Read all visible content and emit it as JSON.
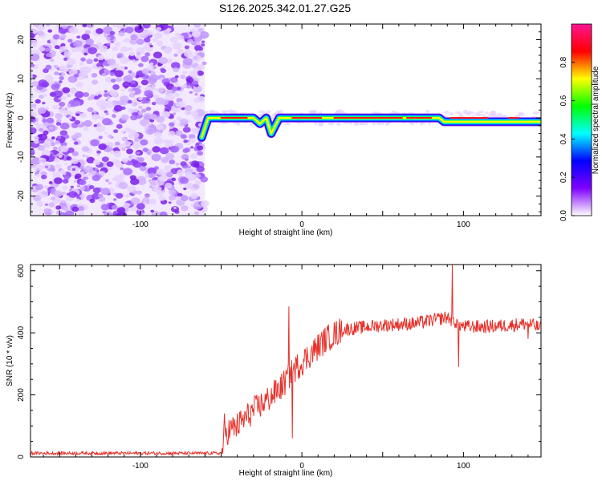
{
  "chart_data": [
    {
      "type": "heatmap",
      "title": "S126.2025.342.01.27.G25",
      "xlabel": "Height of straight line (km)",
      "ylabel": "Frequency (Hz)",
      "xlim": [
        -168,
        148
      ],
      "ylim": [
        -25,
        24
      ],
      "xticks": [
        -100,
        0,
        100
      ],
      "yticks": [
        -20,
        -10,
        0,
        10,
        20
      ],
      "noise_region_x": [
        -168,
        -60
      ],
      "ridge": [
        {
          "x": -62,
          "y": -5
        },
        {
          "x": -58,
          "y": 0
        },
        {
          "x": -30,
          "y": 0
        },
        {
          "x": -26,
          "y": -1.5
        },
        {
          "x": -22,
          "y": 0
        },
        {
          "x": -19,
          "y": -4
        },
        {
          "x": -14,
          "y": 0
        },
        {
          "x": 85,
          "y": 0
        },
        {
          "x": 88,
          "y": -1
        },
        {
          "x": 148,
          "y": -1
        }
      ],
      "colorbar": {
        "label": "Normalized spectral amplitude",
        "range": [
          0,
          1
        ],
        "ticks": [
          "0.0",
          "0.2",
          "0.4",
          "0.6",
          "0.8"
        ],
        "colormap": [
          "#ff1493",
          "#ff0000",
          "#ffff00",
          "#00ff00",
          "#00ffff",
          "#0000ff",
          "#8000ff",
          "#ffffff"
        ]
      }
    },
    {
      "type": "line",
      "xlabel": "Height of straight line (km)",
      "ylabel": "SNR (10 * v/v)",
      "xlim": [
        -168,
        148
      ],
      "ylim": [
        0,
        620
      ],
      "xticks": [
        -100,
        0,
        100
      ],
      "yticks": [
        0,
        200,
        400,
        600
      ],
      "series": [
        {
          "name": "SNR",
          "color": "#e8312a",
          "envelope": [
            {
              "x": -168,
              "y": 12
            },
            {
              "x": -50,
              "y": 12
            },
            {
              "x": -47,
              "y": 80
            },
            {
              "x": -40,
              "y": 100
            },
            {
              "x": -30,
              "y": 150
            },
            {
              "x": -20,
              "y": 190
            },
            {
              "x": -12,
              "y": 230
            },
            {
              "x": -5,
              "y": 280
            },
            {
              "x": 5,
              "y": 330
            },
            {
              "x": 15,
              "y": 380
            },
            {
              "x": 25,
              "y": 410
            },
            {
              "x": 50,
              "y": 425
            },
            {
              "x": 70,
              "y": 430
            },
            {
              "x": 90,
              "y": 450
            },
            {
              "x": 100,
              "y": 420
            },
            {
              "x": 115,
              "y": 420
            },
            {
              "x": 130,
              "y": 425
            },
            {
              "x": 140,
              "y": 430
            },
            {
              "x": 148,
              "y": 415
            }
          ],
          "spikes": [
            {
              "x": -48,
              "y": 140
            },
            {
              "x": -8,
              "y": 485
            },
            {
              "x": -6,
              "y": 60
            },
            {
              "x": 93,
              "y": 620
            },
            {
              "x": 97,
              "y": 290
            },
            {
              "x": 140,
              "y": 380
            }
          ]
        }
      ]
    }
  ]
}
